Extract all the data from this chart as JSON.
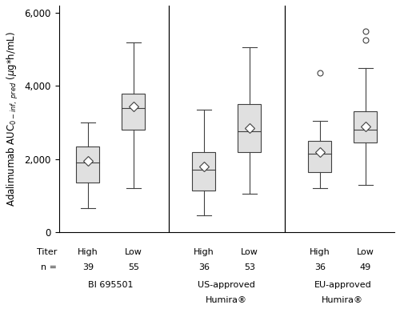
{
  "groups": [
    {
      "label_line1": "BI 695501",
      "label_line2": "",
      "titer_labels": [
        "High",
        "Low"
      ],
      "n_labels": [
        "39",
        "55"
      ],
      "boxes": [
        {
          "q1": 1350,
          "median": 1900,
          "q3": 2350,
          "mean": 1950,
          "whisker_low": 650,
          "whisker_high": 3000,
          "outliers": []
        },
        {
          "q1": 2800,
          "median": 3400,
          "q3": 3800,
          "mean": 3450,
          "whisker_low": 1200,
          "whisker_high": 5200,
          "outliers": []
        }
      ]
    },
    {
      "label_line1": "US-approved",
      "label_line2": "Humira®",
      "titer_labels": [
        "High",
        "Low"
      ],
      "n_labels": [
        "36",
        "53"
      ],
      "boxes": [
        {
          "q1": 1150,
          "median": 1700,
          "q3": 2200,
          "mean": 1800,
          "whisker_low": 450,
          "whisker_high": 3350,
          "outliers": []
        },
        {
          "q1": 2200,
          "median": 2750,
          "q3": 3500,
          "mean": 2850,
          "whisker_low": 1050,
          "whisker_high": 5050,
          "outliers": []
        }
      ]
    },
    {
      "label_line1": "EU-approved",
      "label_line2": "Humira®",
      "titer_labels": [
        "High",
        "Low"
      ],
      "n_labels": [
        "36",
        "49"
      ],
      "boxes": [
        {
          "q1": 1650,
          "median": 2150,
          "q3": 2500,
          "mean": 2200,
          "whisker_low": 1200,
          "whisker_high": 3050,
          "outliers": [
            4350
          ]
        },
        {
          "q1": 2450,
          "median": 2800,
          "q3": 3300,
          "mean": 2900,
          "whisker_low": 1300,
          "whisker_high": 4500,
          "outliers": [
            5250,
            5500
          ]
        }
      ]
    }
  ],
  "ylabel_line1": "Adalimumab AUC",
  "ylim": [
    0,
    6200
  ],
  "yticks": [
    0,
    2000,
    4000,
    6000
  ],
  "yticklabels": [
    "0",
    "2,000",
    "4,000",
    "6,000"
  ],
  "box_width": 0.28,
  "box_color": "#e0e0e0",
  "box_edgecolor": "#404040",
  "median_color": "#404040",
  "mean_marker": "D",
  "mean_color": "white",
  "mean_edgecolor": "#404040",
  "whisker_color": "#404040",
  "outlier_marker": "o",
  "outlier_color": "white",
  "outlier_edgecolor": "#404040",
  "figsize": [
    5.0,
    3.91
  ],
  "dpi": 100
}
